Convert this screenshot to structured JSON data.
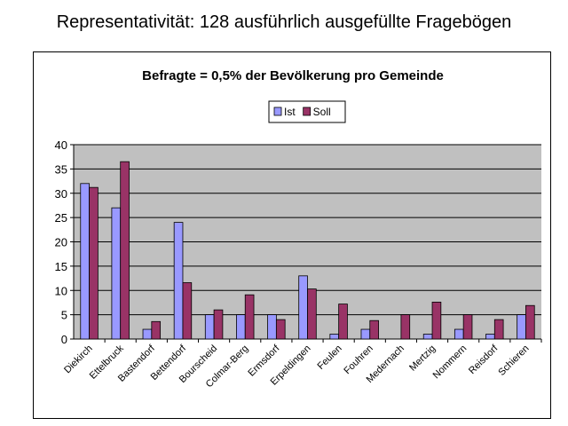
{
  "slide": {
    "title": "Representativität: 128 ausführlich ausgefüllte Fragebögen"
  },
  "chart_data": {
    "type": "bar",
    "title": "Befragte = 0,5% der Bevölkerung pro Gemeinde",
    "xlabel": "",
    "ylabel": "",
    "ylim": [
      0,
      40
    ],
    "yticks": [
      0,
      5,
      10,
      15,
      20,
      25,
      30,
      35,
      40
    ],
    "grid": true,
    "legend": "top-center",
    "plot_background": "#c0c0c0",
    "categories": [
      "Diekirch",
      "Ettelbruck",
      "Bastendorf",
      "Bettendorf",
      "Bourscheid",
      "Colmar-Berg",
      "Ermsdorf",
      "Erpeldingen",
      "Feulen",
      "Fouhren",
      "Medernach",
      "Mertzig",
      "Nommern",
      "Reisdorf",
      "Schieren"
    ],
    "series": [
      {
        "name": "Ist",
        "color": "#9999ff",
        "values": [
          32,
          27,
          2,
          24,
          5,
          5,
          5,
          13,
          1,
          2,
          0,
          1,
          2,
          1,
          5
        ]
      },
      {
        "name": "Soll",
        "color": "#993366",
        "values": [
          31.2,
          36.5,
          3.6,
          11.6,
          6,
          9.1,
          4,
          10.3,
          7.2,
          3.8,
          5,
          7.6,
          5,
          4,
          6.9
        ]
      }
    ]
  }
}
